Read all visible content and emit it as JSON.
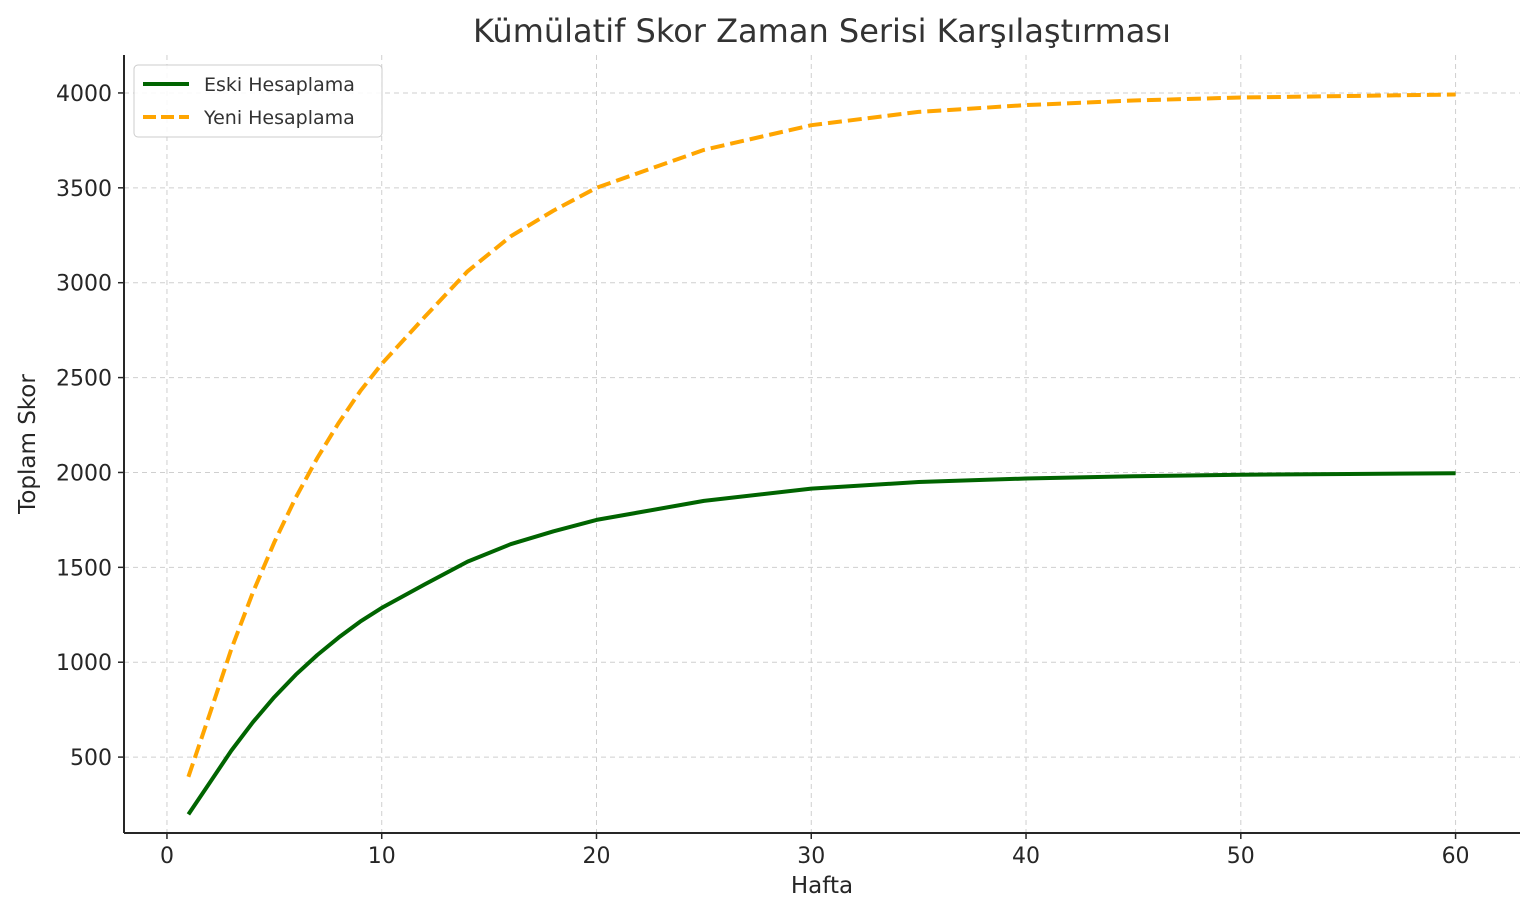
{
  "chart_data": {
    "type": "line",
    "title": "Kümülatif Skor Zaman Serisi Karşılaştırması",
    "xlabel": "Hafta",
    "ylabel": "Toplam Skor",
    "xlim": [
      -2,
      63
    ],
    "ylim": [
      100,
      4200
    ],
    "xticks": [
      0,
      10,
      20,
      30,
      40,
      50,
      60
    ],
    "yticks": [
      500,
      1000,
      1500,
      2000,
      2500,
      3000,
      3500,
      4000
    ],
    "grid": true,
    "legend_position": "top-left",
    "x": [
      1,
      2,
      3,
      4,
      5,
      6,
      7,
      8,
      9,
      10,
      12,
      14,
      16,
      18,
      20,
      25,
      30,
      35,
      40,
      45,
      50,
      55,
      60
    ],
    "series": [
      {
        "name": "Eski Hesaplama",
        "color": "#006400",
        "style": "solid",
        "values": [
          198,
          366,
          535,
          684,
          816,
          934,
          1038,
          1131,
          1214,
          1286,
          1410,
          1530,
          1622,
          1690,
          1750,
          1850,
          1915,
          1950,
          1968,
          1980,
          1988,
          1992,
          1996
        ]
      },
      {
        "name": "Yeni Hesaplama",
        "color": "#ffa500",
        "style": "dashed",
        "values": [
          396,
          730,
          1070,
          1368,
          1632,
          1868,
          2076,
          2262,
          2428,
          2572,
          2820,
          3060,
          3244,
          3380,
          3500,
          3700,
          3830,
          3900,
          3936,
          3960,
          3976,
          3984,
          3992
        ]
      }
    ]
  }
}
